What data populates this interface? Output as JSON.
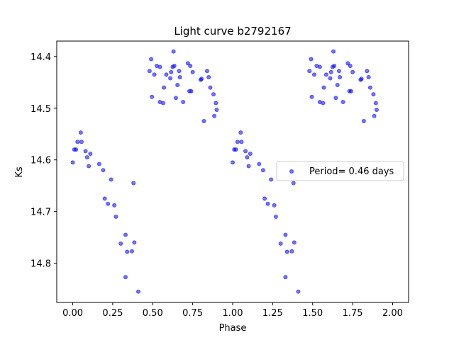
{
  "chart_data": {
    "type": "scatter",
    "title": "Light curve b2792167",
    "xlabel": "Phase",
    "ylabel": "Ks",
    "xlim": [
      -0.1,
      2.1
    ],
    "ylim": [
      14.876,
      14.37
    ],
    "y_inverted": true,
    "grid": false,
    "legend_position": "center-right",
    "marker_color": "#0000ff",
    "marker_alpha": 0.55,
    "xticks": [
      0.0,
      0.25,
      0.5,
      0.75,
      1.0,
      1.25,
      1.5,
      1.75,
      2.0
    ],
    "xtick_labels": [
      "0.00",
      "0.25",
      "0.50",
      "0.75",
      "1.00",
      "1.25",
      "1.50",
      "1.75",
      "2.00"
    ],
    "yticks": [
      14.4,
      14.5,
      14.6,
      14.7,
      14.8
    ],
    "ytick_labels": [
      "14.4",
      "14.5",
      "14.6",
      "14.7",
      "14.8"
    ],
    "series": [
      {
        "name": "Period= 0.46 days",
        "points": [
          [
            0.0,
            14.605
          ],
          [
            0.01,
            14.58
          ],
          [
            0.02,
            14.58
          ],
          [
            0.03,
            14.565
          ],
          [
            0.05,
            14.547
          ],
          [
            0.055,
            14.565
          ],
          [
            0.08,
            14.583
          ],
          [
            0.09,
            14.595
          ],
          [
            0.1,
            14.612
          ],
          [
            0.11,
            14.588
          ],
          [
            0.165,
            14.608
          ],
          [
            0.19,
            14.62
          ],
          [
            0.2,
            14.675
          ],
          [
            0.22,
            14.685
          ],
          [
            0.24,
            14.638
          ],
          [
            0.26,
            14.688
          ],
          [
            0.27,
            14.71
          ],
          [
            0.3,
            14.762
          ],
          [
            0.33,
            14.745
          ],
          [
            0.33,
            14.827
          ],
          [
            0.34,
            14.778
          ],
          [
            0.37,
            14.777
          ],
          [
            0.38,
            14.645
          ],
          [
            0.385,
            14.76
          ],
          [
            0.41,
            14.855
          ],
          [
            0.48,
            14.428
          ],
          [
            0.49,
            14.405
          ],
          [
            0.495,
            14.478
          ],
          [
            0.51,
            14.435
          ],
          [
            0.525,
            14.418
          ],
          [
            0.545,
            14.42
          ],
          [
            0.545,
            14.488
          ],
          [
            0.565,
            14.49
          ],
          [
            0.57,
            14.46
          ],
          [
            0.585,
            14.435
          ],
          [
            0.61,
            14.442
          ],
          [
            0.615,
            14.43
          ],
          [
            0.625,
            14.42
          ],
          [
            0.63,
            14.39
          ],
          [
            0.635,
            14.418
          ],
          [
            0.645,
            14.48
          ],
          [
            0.655,
            14.455
          ],
          [
            0.665,
            14.428
          ],
          [
            0.67,
            14.44
          ],
          [
            0.69,
            14.488
          ],
          [
            0.72,
            14.413
          ],
          [
            0.73,
            14.467
          ],
          [
            0.735,
            14.418
          ],
          [
            0.74,
            14.467
          ],
          [
            0.75,
            14.43
          ],
          [
            0.8,
            14.445
          ],
          [
            0.805,
            14.443
          ],
          [
            0.82,
            14.525
          ],
          [
            0.84,
            14.428
          ],
          [
            0.85,
            14.44
          ],
          [
            0.86,
            14.46
          ],
          [
            0.88,
            14.473
          ],
          [
            0.885,
            14.515
          ],
          [
            0.895,
            14.49
          ],
          [
            0.9,
            14.503
          ]
        ]
      }
    ]
  }
}
